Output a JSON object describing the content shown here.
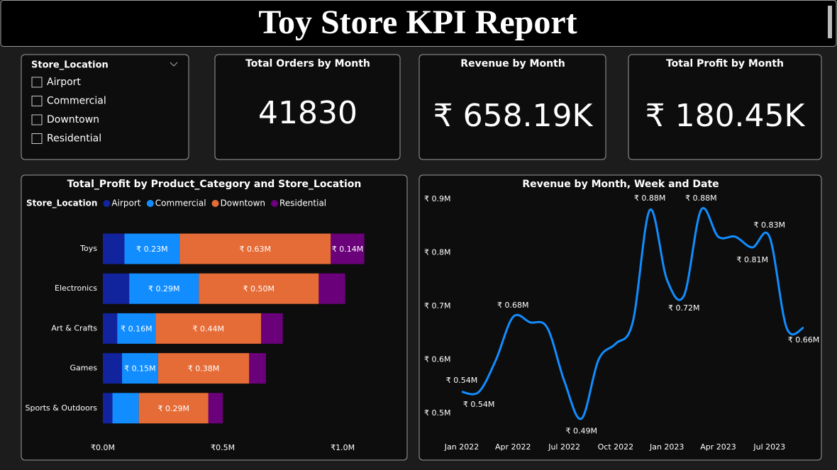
{
  "header": {
    "title": "Toy Store KPI Report"
  },
  "slicer": {
    "title": "Store_Location",
    "items": [
      "Airport",
      "Commercial",
      "Downtown",
      "Residential"
    ]
  },
  "kpis": [
    {
      "title": "Total Orders by Month",
      "value": "41830"
    },
    {
      "title": "Revenue by Month",
      "value": "₹ 658.19K"
    },
    {
      "title": "Total Profit by Month",
      "value": "₹ 180.45K"
    }
  ],
  "chart_data": [
    {
      "type": "bar",
      "orientation": "horizontal",
      "stacked": true,
      "title": "Total_Profit by Product_Category and Store_Location",
      "legend_title": "Store_Location",
      "categories": [
        "Toys",
        "Electronics",
        "Art & Crafts",
        "Games",
        "Sports & Outdoors"
      ],
      "series": [
        {
          "name": "Airport",
          "color": "#12239E",
          "values": [
            0.09,
            0.11,
            0.06,
            0.08,
            0.04
          ]
        },
        {
          "name": "Commercial",
          "color": "#118DFF",
          "values": [
            0.23,
            0.29,
            0.16,
            0.15,
            0.11
          ],
          "value_labels": [
            "₹ 0.23M",
            "₹ 0.29M",
            "₹ 0.16M",
            "₹ 0.15M",
            null
          ]
        },
        {
          "name": "Downtown",
          "color": "#E66C37",
          "values": [
            0.63,
            0.5,
            0.44,
            0.38,
            0.29
          ],
          "value_labels": [
            "₹ 0.63M",
            "₹ 0.50M",
            "₹ 0.44M",
            "₹ 0.38M",
            "₹ 0.29M"
          ]
        },
        {
          "name": "Residential",
          "color": "#6B007B",
          "values": [
            0.14,
            0.11,
            0.09,
            0.07,
            0.06
          ],
          "value_labels": [
            "₹ 0.14M",
            null,
            null,
            null,
            null
          ]
        }
      ],
      "xlim": [
        0,
        1.1
      ],
      "xticks": [
        {
          "value": 0,
          "label": "₹0.0M"
        },
        {
          "value": 0.5,
          "label": "₹0.5M"
        },
        {
          "value": 1,
          "label": "₹1.0M"
        }
      ]
    },
    {
      "type": "line",
      "title": "Revenue by Month, Week and Date",
      "categories": [
        "Jan 2022",
        null,
        null,
        "Apr 2022",
        null,
        null,
        "Jul 2022",
        null,
        null,
        "Oct 2022",
        null,
        null,
        "Jan 2023",
        null,
        null,
        "Apr 2023",
        null,
        null,
        "Jul 2023",
        null,
        null
      ],
      "series": [
        {
          "name": "Revenue",
          "color": "#118DFF",
          "values": [
            0.54,
            0.54,
            0.6,
            0.68,
            0.67,
            0.66,
            0.56,
            0.49,
            0.6,
            0.63,
            0.67,
            0.88,
            0.75,
            0.72,
            0.88,
            0.83,
            0.83,
            0.81,
            0.83,
            0.66,
            0.66
          ],
          "value_labels": [
            "₹ 0.54M",
            "₹ 0.54M",
            null,
            "₹ 0.68M",
            null,
            null,
            null,
            "₹ 0.49M",
            null,
            null,
            null,
            "₹ 0.88M",
            null,
            "₹ 0.72M",
            "₹ 0.88M",
            null,
            null,
            "₹ 0.81M",
            "₹ 0.83M",
            null,
            "₹ 0.66M"
          ]
        }
      ],
      "ylim": [
        0.46,
        0.91
      ],
      "yticks": [
        {
          "value": 0.5,
          "label": "₹ 0.5M"
        },
        {
          "value": 0.6,
          "label": "₹ 0.6M"
        },
        {
          "value": 0.7,
          "label": "₹ 0.7M"
        },
        {
          "value": 0.8,
          "label": "₹ 0.8M"
        },
        {
          "value": 0.9,
          "label": "₹ 0.9M"
        }
      ]
    }
  ]
}
